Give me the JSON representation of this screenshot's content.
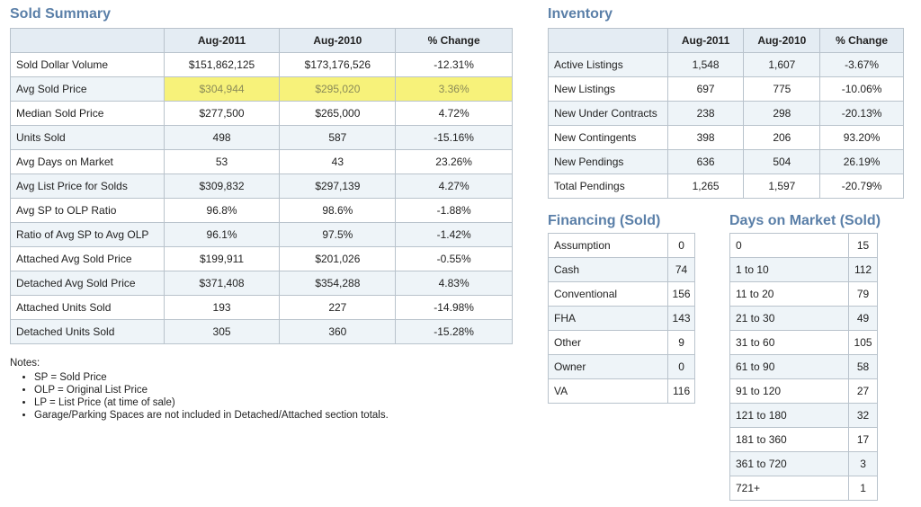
{
  "sold": {
    "title": "Sold Summary",
    "headers": [
      "Aug-2011",
      "Aug-2010",
      "% Change"
    ],
    "rows": [
      {
        "label": "Sold Dollar Volume",
        "v1": "$151,862,125",
        "v2": "$173,176,526",
        "v3": "-12.31%"
      },
      {
        "label": "Avg Sold Price",
        "v1": "$304,944",
        "v2": "$295,020",
        "v3": "3.36%"
      },
      {
        "label": "Median Sold Price",
        "v1": "$277,500",
        "v2": "$265,000",
        "v3": "4.72%"
      },
      {
        "label": "Units Sold",
        "v1": "498",
        "v2": "587",
        "v3": "-15.16%"
      },
      {
        "label": "Avg Days on Market",
        "v1": "53",
        "v2": "43",
        "v3": "23.26%"
      },
      {
        "label": "Avg List Price for Solds",
        "v1": "$309,832",
        "v2": "$297,139",
        "v3": "4.27%"
      },
      {
        "label": "Avg SP to OLP Ratio",
        "v1": "96.8%",
        "v2": "98.6%",
        "v3": "-1.88%"
      },
      {
        "label": "Ratio of Avg SP to Avg OLP",
        "v1": "96.1%",
        "v2": "97.5%",
        "v3": "-1.42%"
      },
      {
        "label": "Attached Avg Sold Price",
        "v1": "$199,911",
        "v2": "$201,026",
        "v3": "-0.55%"
      },
      {
        "label": "Detached Avg Sold Price",
        "v1": "$371,408",
        "v2": "$354,288",
        "v3": "4.83%"
      },
      {
        "label": "Attached Units Sold",
        "v1": "193",
        "v2": "227",
        "v3": "-14.98%"
      },
      {
        "label": "Detached Units Sold",
        "v1": "305",
        "v2": "360",
        "v3": "-15.28%"
      }
    ]
  },
  "inventory": {
    "title": "Inventory",
    "headers": [
      "Aug-2011",
      "Aug-2010",
      "% Change"
    ],
    "rows": [
      {
        "label": "Active Listings",
        "v1": "1,548",
        "v2": "1,607",
        "v3": "-3.67%"
      },
      {
        "label": "New Listings",
        "v1": "697",
        "v2": "775",
        "v3": "-10.06%"
      },
      {
        "label": "New Under Contracts",
        "v1": "238",
        "v2": "298",
        "v3": "-20.13%"
      },
      {
        "label": "New Contingents",
        "v1": "398",
        "v2": "206",
        "v3": "93.20%"
      },
      {
        "label": "New Pendings",
        "v1": "636",
        "v2": "504",
        "v3": "26.19%"
      },
      {
        "label": "Total Pendings",
        "v1": "1,265",
        "v2": "1,597",
        "v3": "-20.79%"
      }
    ]
  },
  "financing": {
    "title": "Financing (Sold)",
    "rows": [
      {
        "label": "Assumption",
        "value": "0"
      },
      {
        "label": "Cash",
        "value": "74"
      },
      {
        "label": "Conventional",
        "value": "156"
      },
      {
        "label": "FHA",
        "value": "143"
      },
      {
        "label": "Other",
        "value": "9"
      },
      {
        "label": "Owner",
        "value": "0"
      },
      {
        "label": "VA",
        "value": "116"
      }
    ]
  },
  "dom": {
    "title": "Days on Market (Sold)",
    "rows": [
      {
        "label": "0",
        "value": "15"
      },
      {
        "label": "1 to 10",
        "value": "112"
      },
      {
        "label": "11 to 20",
        "value": "79"
      },
      {
        "label": "21 to 30",
        "value": "49"
      },
      {
        "label": "31 to 60",
        "value": "105"
      },
      {
        "label": "61 to 90",
        "value": "58"
      },
      {
        "label": "91 to 120",
        "value": "27"
      },
      {
        "label": "121 to 180",
        "value": "32"
      },
      {
        "label": "181 to 360",
        "value": "17"
      },
      {
        "label": "361 to 720",
        "value": "3"
      },
      {
        "label": "721+",
        "value": "1"
      }
    ]
  },
  "notes": {
    "heading": "Notes:",
    "items": [
      "SP = Sold Price",
      "OLP = Original List Price",
      "LP = List Price (at time of sale)",
      "Garage/Parking Spaces are not included in Detached/Attached section totals."
    ]
  }
}
